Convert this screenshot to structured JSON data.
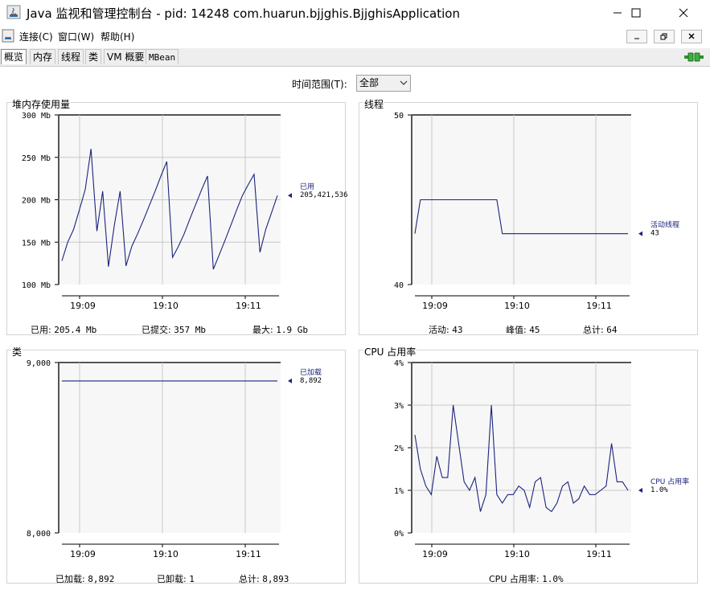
{
  "window": {
    "title": "Java 监视和管理控制台 - pid: 14248 com.huarun.bjjghis.BjjghisApplication"
  },
  "menu": {
    "items": [
      "连接(C)",
      "窗口(W)",
      "帮助(H)"
    ]
  },
  "tabs": [
    "概览",
    "内存",
    "线程",
    "类",
    "VM 概要",
    "MBean"
  ],
  "active_tab": "概览",
  "time_range": {
    "label": "时间范围(T):",
    "value": "全部"
  },
  "panels": {
    "heap": {
      "title": "堆内存使用量",
      "legend_label": "已用",
      "legend_value": "205,421,536",
      "stats": [
        {
          "label": "已用:",
          "value": "205.4 Mb"
        },
        {
          "label": "已提交:",
          "value": "357 Mb"
        },
        {
          "label": "最大:",
          "value": "1.9 Gb"
        }
      ]
    },
    "threads": {
      "title": "线程",
      "legend_label": "活动线程",
      "legend_value": "43",
      "stats": [
        {
          "label": "活动:",
          "value": "43"
        },
        {
          "label": "峰值:",
          "value": "45"
        },
        {
          "label": "总计:",
          "value": "64"
        }
      ]
    },
    "classes": {
      "title": "类",
      "legend_label": "已加载",
      "legend_value": "8,892",
      "stats": [
        {
          "label": "已加载:",
          "value": "8,892"
        },
        {
          "label": "已卸载:",
          "value": "1"
        },
        {
          "label": "总计:",
          "value": "8,893"
        }
      ]
    },
    "cpu": {
      "title": "CPU 占用率",
      "legend_label": "CPU 占用率",
      "legend_value": "1.0%",
      "stats": [
        {
          "label": "CPU 占用率:",
          "value": "1.0%"
        }
      ]
    }
  },
  "chart_data": [
    {
      "type": "line",
      "title": "堆内存使用量",
      "x_ticks": [
        "19:09",
        "19:10",
        "19:11"
      ],
      "y_ticks": [
        "100 Mb",
        "150 Mb",
        "200 Mb",
        "250 Mb",
        "300 Mb"
      ],
      "ylim": [
        100,
        300
      ],
      "series": [
        {
          "name": "已用",
          "values": [
            128,
            150,
            165,
            188,
            212,
            260,
            163,
            210,
            121,
            170,
            210,
            122,
            145,
            160,
            176,
            193,
            210,
            228,
            245,
            132,
            145,
            160,
            178,
            195,
            212,
            228,
            118,
            135,
            152,
            170,
            188,
            205,
            218,
            230,
            138,
            165,
            185,
            205
          ]
        }
      ]
    },
    {
      "type": "line",
      "title": "线程",
      "x_ticks": [
        "19:09",
        "19:10",
        "19:11"
      ],
      "y_ticks": [
        "40",
        "50"
      ],
      "ylim": [
        40,
        50
      ],
      "series": [
        {
          "name": "活动线程",
          "values": [
            43,
            45,
            45,
            45,
            45,
            45,
            45,
            45,
            45,
            45,
            45,
            45,
            45,
            45,
            45,
            45,
            43,
            43,
            43,
            43,
            43,
            43,
            43,
            43,
            43,
            43,
            43,
            43,
            43,
            43,
            43,
            43,
            43,
            43,
            43,
            43,
            43,
            43,
            43,
            43
          ]
        }
      ]
    },
    {
      "type": "line",
      "title": "类",
      "x_ticks": [
        "19:09",
        "19:10",
        "19:11"
      ],
      "y_ticks": [
        "8,000",
        "9,000"
      ],
      "ylim": [
        8000,
        9000
      ],
      "series": [
        {
          "name": "已加载",
          "values": [
            8892,
            8892,
            8892,
            8892,
            8892,
            8892,
            8892,
            8892,
            8892,
            8892
          ]
        }
      ]
    },
    {
      "type": "line",
      "title": "CPU 占用率",
      "x_ticks": [
        "19:09",
        "19:10",
        "19:11"
      ],
      "y_ticks": [
        "0%",
        "1%",
        "2%",
        "3%",
        "4%"
      ],
      "ylim": [
        0,
        4
      ],
      "series": [
        {
          "name": "CPU 占用率",
          "values": [
            2.3,
            1.5,
            1.1,
            0.9,
            1.8,
            1.3,
            1.3,
            3.0,
            2.1,
            1.2,
            1.0,
            1.3,
            0.5,
            0.9,
            3.0,
            0.9,
            0.7,
            0.9,
            0.9,
            1.1,
            1.0,
            0.6,
            1.2,
            1.3,
            0.6,
            0.5,
            0.7,
            1.1,
            1.2,
            0.7,
            0.8,
            1.1,
            0.9,
            0.9,
            1.0,
            1.1,
            2.1,
            1.2,
            1.2,
            1.0
          ]
        }
      ]
    }
  ],
  "colors": {
    "series": "#1a237e",
    "grid": "#c8c8c8",
    "plot_bg": "#f7f7f7",
    "frame": "#555555"
  }
}
